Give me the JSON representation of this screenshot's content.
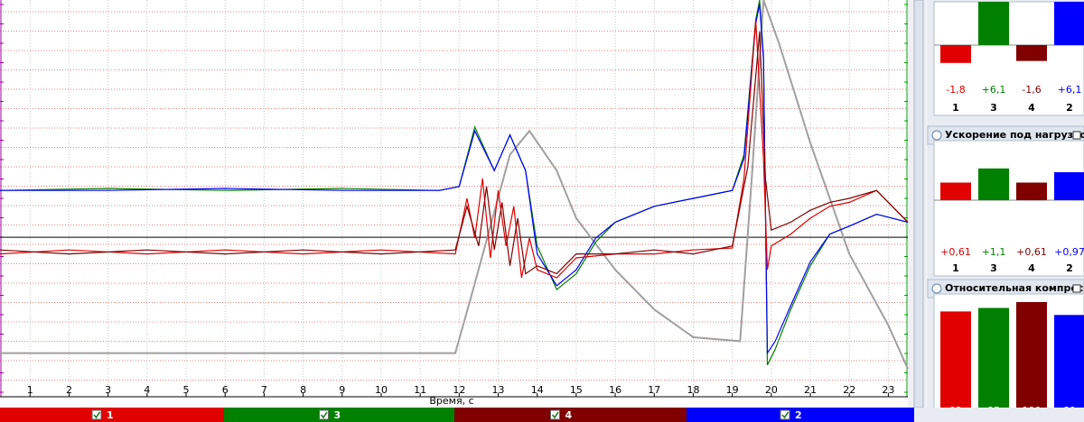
{
  "screen": {
    "plot": {
      "xlim": [
        0.23,
        23.5
      ],
      "ylim": [
        0,
        100
      ],
      "xticks": [
        1,
        2,
        3,
        4,
        5,
        6,
        7,
        8,
        9,
        10,
        11,
        12,
        13,
        14,
        15,
        16,
        17,
        18,
        19,
        20,
        21,
        22,
        23
      ],
      "xlabel": "Время, с",
      "zero_line": 40.2,
      "traces": [
        {
          "color": "#a0a0a0",
          "x": [
            0.23,
            2,
            4,
            6,
            8,
            10,
            11.9,
            12.3,
            12.8,
            13.3,
            13.8,
            14.5,
            15,
            16,
            17,
            18,
            19.2,
            19.5,
            19.8,
            20.2,
            21,
            22,
            23,
            23.5
          ],
          "y": [
            11,
            11,
            11,
            11,
            11,
            11,
            11,
            25,
            43,
            61,
            67,
            57,
            45,
            32,
            22,
            15,
            14,
            55,
            100,
            89,
            64,
            36,
            18,
            7
          ]
        },
        {
          "color": "#008000",
          "x": [
            0.23,
            3,
            6,
            9,
            11.5,
            12,
            12.4,
            12.9,
            13.3,
            13.7,
            14,
            14.5,
            15,
            15.5,
            16,
            17,
            18,
            19,
            19.3,
            19.6,
            19.7,
            19.8,
            19.9,
            20.1,
            20.5,
            21,
            21.5,
            22,
            22.7,
            23.5
          ],
          "y": [
            52,
            52.5,
            52,
            52.5,
            52,
            53,
            68,
            57,
            66,
            57,
            38,
            27,
            31,
            39,
            44,
            48,
            50,
            52,
            61,
            95,
            100,
            86,
            8,
            12,
            22,
            33,
            41,
            43,
            46,
            44
          ]
        },
        {
          "color": "#0000ff",
          "x": [
            0.23,
            3,
            6,
            9,
            11.5,
            12,
            12.4,
            12.9,
            13.3,
            13.7,
            14,
            14.5,
            15,
            15.5,
            16,
            17,
            18,
            19,
            19.3,
            19.6,
            19.7,
            19.8,
            19.9,
            20.1,
            20.5,
            21,
            21.5,
            22,
            22.7,
            23.5
          ],
          "y": [
            52,
            52,
            52.5,
            52,
            52,
            53,
            67,
            57,
            66,
            57,
            36,
            28,
            32,
            40,
            44,
            48,
            50,
            52,
            60,
            94,
            99,
            85,
            11,
            14,
            23,
            34,
            41,
            43,
            46,
            44
          ]
        },
        {
          "color": "#e00000",
          "x": [
            0.23,
            2,
            4,
            6,
            8,
            10,
            11.9,
            12.2,
            12.4,
            12.6,
            12.8,
            13,
            13.2,
            13.4,
            13.6,
            13.8,
            14,
            14.5,
            15,
            16,
            17,
            18,
            19,
            19.3,
            19.6,
            19.8,
            19.9,
            20,
            20.5,
            21,
            21.5,
            22,
            22.7,
            23.5
          ],
          "y": [
            36,
            37,
            36,
            37,
            36,
            37,
            36,
            50,
            40,
            55,
            35,
            52,
            38,
            48,
            30,
            40,
            32,
            30,
            35,
            36,
            36,
            37,
            37.5,
            55,
            95,
            60,
            32,
            38,
            41,
            45,
            48,
            49,
            52,
            44
          ]
        },
        {
          "color": "#800000",
          "x": [
            0.23,
            2,
            4,
            6,
            8,
            10,
            11.9,
            12.2,
            12.5,
            12.7,
            12.9,
            13.1,
            13.3,
            13.5,
            13.7,
            14,
            14.5,
            15,
            16,
            17,
            18,
            19,
            19.4,
            19.7,
            19.85,
            20,
            20.5,
            21,
            21.5,
            22,
            22.7,
            23.5
          ],
          "y": [
            37,
            36,
            37,
            36,
            37,
            36,
            37,
            48,
            38,
            53,
            37,
            49,
            33,
            45,
            31,
            33,
            31,
            36,
            36,
            37,
            36,
            38,
            58,
            92,
            55,
            42,
            44,
            47,
            49,
            50,
            52,
            44
          ]
        }
      ]
    },
    "channels": [
      {
        "label": "1",
        "color": "#e00000"
      },
      {
        "label": "3",
        "color": "#008000"
      },
      {
        "label": "4",
        "color": "#800000"
      },
      {
        "label": "2",
        "color": "#0000ff"
      }
    ],
    "panels": [
      {
        "bars": [
          {
            "category": "1",
            "value": -1.8,
            "label": "-1,8",
            "color": "#e00000"
          },
          {
            "category": "3",
            "value": 6.1,
            "label": "+6,1",
            "color": "#008000"
          },
          {
            "category": "4",
            "value": -1.6,
            "label": "-1,6",
            "color": "#800000"
          },
          {
            "category": "2",
            "value": 6.1,
            "label": "+6,1",
            "color": "#0000ff"
          }
        ]
      },
      {
        "title": "Ускорение под нагрузкой",
        "bars": [
          {
            "category": "1",
            "value": 0.61,
            "label": "+0,61",
            "color": "#e00000"
          },
          {
            "category": "3",
            "value": 1.1,
            "label": "+1,1",
            "color": "#008000"
          },
          {
            "category": "4",
            "value": 0.61,
            "label": "+0,61",
            "color": "#800000"
          },
          {
            "category": "2",
            "value": 0.97,
            "label": "+0,97",
            "color": "#0000ff"
          }
        ]
      },
      {
        "title": "Относительная компресси",
        "bars": [
          {
            "category": "1",
            "value": 92,
            "label": "92",
            "color": "#e00000"
          },
          {
            "category": "3",
            "value": 95,
            "label": "95",
            "color": "#008000"
          },
          {
            "category": "4",
            "value": 100,
            "label": "100",
            "color": "#800000"
          },
          {
            "category": "2",
            "value": 89,
            "label": "89",
            "color": "#0000ff"
          }
        ]
      }
    ]
  }
}
